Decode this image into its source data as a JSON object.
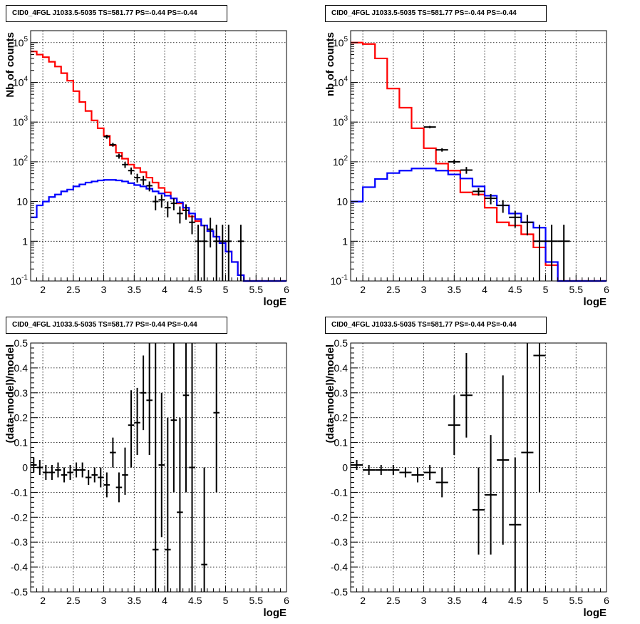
{
  "chart_data": [
    {
      "id": "top-left",
      "type": "line",
      "title": "CID0_4FGL J1033.5-5035 TS=581.77 PS=-0.44 PS=-0.44",
      "xlabel": "logE",
      "ylabel": "Nb of counts",
      "xlim": [
        1.8,
        6.0
      ],
      "ylim": [
        0.1,
        200000
      ],
      "yscale": "log",
      "grid": true,
      "x_ticks": [
        "2",
        "2.5",
        "3",
        "3.5",
        "4",
        "4.5",
        "5",
        "5.5",
        "6"
      ],
      "y_ticks": [
        "10^-1",
        "1",
        "10",
        "10^2",
        "10^3",
        "10^4",
        "10^5"
      ],
      "bin_edges": [
        1.8,
        1.9,
        2.0,
        2.1,
        2.2,
        2.3,
        2.4,
        2.5,
        2.6,
        2.7,
        2.8,
        2.9,
        3.0,
        3.1,
        3.2,
        3.3,
        3.4,
        3.5,
        3.6,
        3.7,
        3.8,
        3.9,
        4.0,
        4.1,
        4.2,
        4.3,
        4.4,
        4.5,
        4.6,
        4.7,
        4.8,
        4.9,
        5.0,
        5.1,
        5.2,
        5.3,
        5.4,
        5.5,
        5.6,
        5.7,
        5.8,
        5.9,
        6.0
      ],
      "series": [
        {
          "color": "#ff0000",
          "values": [
            60000,
            50000,
            43000,
            33000,
            25000,
            17000,
            11000,
            6000,
            3200,
            1900,
            1100,
            700,
            450,
            260,
            170,
            120,
            85,
            70,
            55,
            40,
            30,
            22,
            17,
            12,
            9,
            6,
            4.2,
            3.2,
            2.5,
            1.8,
            1.3,
            0.9,
            0.55,
            0.3,
            0.14,
            0.1,
            0.1,
            0.1,
            0.1,
            0.1,
            0.1,
            0.1
          ]
        },
        {
          "color": "#0000ff",
          "values": [
            4,
            8,
            10,
            13,
            15,
            18,
            20,
            24,
            27,
            30,
            32,
            34,
            35,
            35,
            34,
            32,
            29,
            26,
            24,
            21,
            18,
            16,
            14,
            12,
            9.5,
            7,
            5,
            3.6,
            2.5,
            1.8,
            1.3,
            0.9,
            0.55,
            0.3,
            0.14,
            0.1,
            0.1,
            0.1,
            0.1,
            0.1,
            0.1,
            0.1
          ]
        }
      ],
      "data_points": {
        "x": [
          3.05,
          3.15,
          3.25,
          3.35,
          3.45,
          3.55,
          3.65,
          3.75,
          3.85,
          3.95,
          4.05,
          4.15,
          4.25,
          4.35,
          4.45,
          4.55,
          4.65,
          4.75,
          4.85,
          4.95,
          5.05,
          5.25
        ],
        "y": [
          430,
          270,
          140,
          85,
          60,
          40,
          35,
          25,
          10,
          11,
          7,
          9,
          5,
          6,
          3,
          1,
          1,
          2,
          1,
          1,
          1,
          1
        ],
        "ylo": [
          380,
          240,
          120,
          70,
          48,
          30,
          26,
          18,
          6,
          7,
          4,
          6,
          2.8,
          3.5,
          1.5,
          0.1,
          0.1,
          0.7,
          0.1,
          0.1,
          0.1,
          0.1
        ],
        "yhi": [
          480,
          300,
          160,
          100,
          72,
          50,
          44,
          32,
          14,
          15,
          10,
          12,
          7.5,
          8.5,
          4.5,
          2.6,
          2.6,
          3.9,
          2.6,
          2.6,
          2.6,
          2.6
        ]
      }
    },
    {
      "id": "top-right",
      "type": "line",
      "title": "CID0_4FGL J1033.5-5035 TS=581.77 PS=-0.44 PS=-0.44",
      "xlabel": "logE",
      "ylabel": "nb of counts",
      "xlim": [
        1.8,
        6.0
      ],
      "ylim": [
        0.1,
        200000
      ],
      "yscale": "log",
      "grid": true,
      "x_ticks": [
        "2",
        "2.5",
        "3",
        "3.5",
        "4",
        "4.5",
        "5",
        "5.5",
        "6"
      ],
      "y_ticks": [
        "10^-1",
        "1",
        "10",
        "10^2",
        "10^3",
        "10^4",
        "10^5"
      ],
      "bin_edges": [
        1.8,
        2.0,
        2.2,
        2.4,
        2.6,
        2.8,
        3.0,
        3.2,
        3.4,
        3.6,
        3.8,
        4.0,
        4.2,
        4.4,
        4.6,
        4.8,
        5.0,
        5.2,
        5.4,
        5.6,
        5.8,
        6.0
      ],
      "series": [
        {
          "color": "#ff0000",
          "values": [
            100000,
            92000,
            40000,
            7000,
            2300,
            700,
            220,
            90,
            60,
            17,
            15,
            7,
            3,
            2.5,
            1.5,
            0.7,
            0.25,
            0.1,
            0.1,
            0.1,
            0.1
          ]
        },
        {
          "color": "#0000ff",
          "values": [
            10,
            23,
            37,
            52,
            60,
            68,
            68,
            60,
            48,
            38,
            24,
            14,
            8,
            5,
            3,
            2.2,
            0.3,
            0.1,
            0.1,
            0.1,
            0.1
          ]
        }
      ],
      "data_points": {
        "x": [
          3.1,
          3.3,
          3.5,
          3.7,
          3.9,
          4.1,
          4.3,
          4.5,
          4.7,
          4.9,
          5.1,
          5.3
        ],
        "y": [
          750,
          200,
          100,
          62,
          18,
          12,
          8,
          4,
          3,
          1,
          1,
          1
        ],
        "ylo": [
          700,
          180,
          88,
          50,
          14,
          8.5,
          5.2,
          2.2,
          1.4,
          0.1,
          0.1,
          0.1
        ],
        "yhi": [
          800,
          220,
          112,
          74,
          22,
          15.5,
          10.8,
          5.8,
          4.6,
          2.6,
          2.6,
          2.6
        ]
      }
    },
    {
      "id": "bottom-left",
      "type": "scatter",
      "title": "CID0_4FGL J1033.5-5035 TS=581.77 PS=-0.44 PS=-0.44",
      "xlabel": "logE",
      "ylabel": "(data-model)/model",
      "xlim": [
        1.8,
        6.0
      ],
      "ylim": [
        -0.5,
        0.5
      ],
      "grid": true,
      "x_ticks": [
        "2",
        "2.5",
        "3",
        "3.5",
        "4",
        "4.5",
        "5",
        "5.5",
        "6"
      ],
      "y_ticks": [
        "-0.5",
        "-0.4",
        "-0.3",
        "-0.2",
        "-0.1",
        "0",
        "0.1",
        "0.2",
        "0.3",
        "0.4",
        "0.5"
      ],
      "data_points": {
        "x": [
          1.85,
          1.95,
          2.05,
          2.15,
          2.25,
          2.35,
          2.45,
          2.55,
          2.65,
          2.75,
          2.85,
          2.95,
          3.05,
          3.15,
          3.25,
          3.35,
          3.45,
          3.55,
          3.65,
          3.75,
          3.85,
          3.95,
          4.05,
          4.15,
          4.25,
          4.35,
          4.45,
          4.65,
          4.85
        ],
        "y": [
          0.01,
          0.0,
          -0.02,
          -0.02,
          -0.01,
          -0.03,
          -0.02,
          -0.01,
          -0.01,
          -0.04,
          -0.03,
          -0.04,
          -0.07,
          0.06,
          -0.08,
          -0.03,
          0.17,
          0.18,
          0.3,
          0.27,
          -0.33,
          0.01,
          -0.33,
          0.19,
          -0.18,
          0.29,
          0.0,
          -0.39,
          0.22
        ],
        "ylo": [
          -0.02,
          -0.03,
          -0.05,
          -0.05,
          -0.04,
          -0.06,
          -0.05,
          -0.04,
          -0.04,
          -0.07,
          -0.06,
          -0.08,
          -0.12,
          0.0,
          -0.14,
          -0.11,
          0.0,
          0.05,
          0.15,
          0.05,
          -0.5,
          -0.28,
          -0.5,
          -0.1,
          -0.5,
          -0.1,
          -0.5,
          -0.5,
          -0.1
        ],
        "yhi": [
          0.04,
          0.03,
          0.01,
          0.01,
          0.02,
          0.0,
          0.01,
          0.02,
          0.02,
          -0.01,
          0.0,
          0.0,
          -0.02,
          0.12,
          -0.02,
          0.08,
          0.31,
          0.32,
          0.45,
          0.5,
          0.5,
          0.3,
          0.2,
          0.5,
          0.2,
          0.5,
          0.5,
          0.0,
          0.5
        ]
      }
    },
    {
      "id": "bottom-right",
      "type": "scatter",
      "title": "CID0_4FGL J1033.5-5035 TS=581.77 PS=-0.44 PS=-0.44",
      "xlabel": "logE",
      "ylabel": "(data-model)/model",
      "xlim": [
        1.8,
        6.0
      ],
      "ylim": [
        -0.5,
        0.5
      ],
      "grid": true,
      "x_ticks": [
        "2",
        "2.5",
        "3",
        "3.5",
        "4",
        "4.5",
        "5",
        "5.5",
        "6"
      ],
      "y_ticks": [
        "-0.5",
        "-0.4",
        "-0.3",
        "-0.2",
        "-0.1",
        "0",
        "0.1",
        "0.2",
        "0.3",
        "0.4",
        "0.5"
      ],
      "data_points": {
        "x": [
          1.9,
          2.1,
          2.3,
          2.5,
          2.7,
          2.9,
          3.1,
          3.3,
          3.5,
          3.7,
          3.9,
          4.1,
          4.3,
          4.5,
          4.7,
          4.9
        ],
        "y": [
          0.01,
          -0.01,
          -0.01,
          -0.01,
          -0.02,
          -0.03,
          -0.02,
          -0.06,
          0.17,
          0.29,
          -0.17,
          -0.11,
          0.03,
          -0.23,
          0.06,
          0.45
        ],
        "ylo": [
          -0.01,
          -0.03,
          -0.03,
          -0.03,
          -0.04,
          -0.06,
          -0.05,
          -0.12,
          0.05,
          0.12,
          -0.35,
          -0.35,
          -0.31,
          -0.5,
          -0.5,
          -0.1
        ],
        "yhi": [
          0.03,
          0.01,
          0.01,
          0.01,
          0.0,
          0.0,
          0.01,
          0.0,
          0.29,
          0.46,
          0.0,
          0.13,
          0.37,
          0.04,
          0.5,
          0.5
        ]
      }
    }
  ]
}
